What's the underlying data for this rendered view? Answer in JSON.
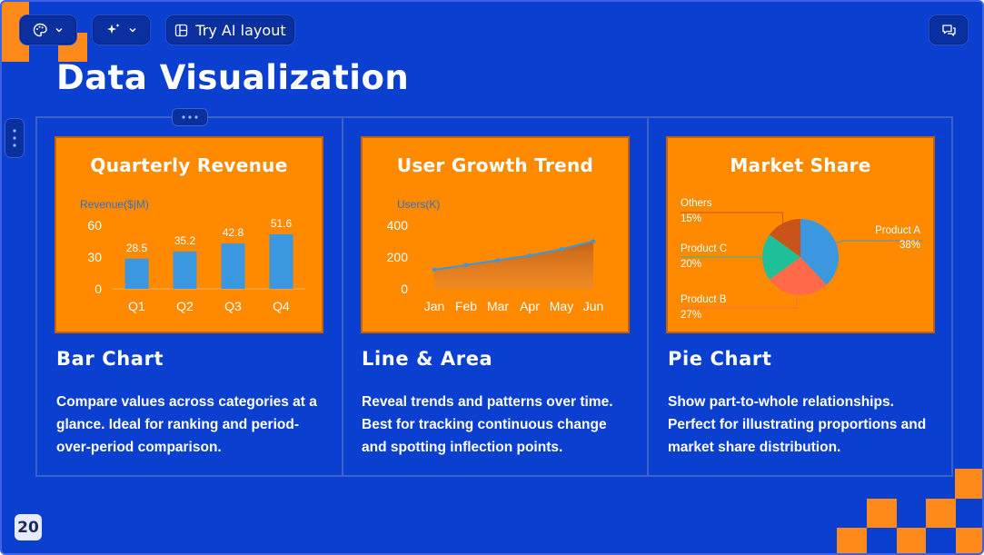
{
  "toolbar": {
    "theme_icon": "palette-icon",
    "ai_icon": "sparkle-icon",
    "try_ai_label": "Try AI layout",
    "comments_icon": "comments-icon"
  },
  "slide": {
    "title": "Data Visualization",
    "page_number": "20",
    "colors": {
      "background": "#0a3fd0",
      "accent": "#ff8a00",
      "bar_blue": "#3b97e0",
      "teal": "#1fbf9a",
      "coral": "#ff6b4a",
      "brown": "#c9541a"
    }
  },
  "cards": [
    {
      "chart_title": "Quarterly Revenue",
      "heading": "Bar Chart",
      "description": "Compare values across categories at a glance. Ideal for ranking and period-over-period comparison."
    },
    {
      "chart_title": "User Growth Trend",
      "heading": "Line & Area",
      "description": "Reveal trends and patterns over time. Best for tracking continuous change and spotting inflection points."
    },
    {
      "chart_title": "Market Share",
      "heading": "Pie Chart",
      "description": "Show part-to-whole relationships. Perfect for illustrating proportions and market share distribution."
    }
  ],
  "chart_data": [
    {
      "type": "bar",
      "title": "Quarterly Revenue",
      "ylabel": "Revenue($|M)",
      "categories": [
        "Q1",
        "Q2",
        "Q3",
        "Q4"
      ],
      "values": [
        28.5,
        35.2,
        42.8,
        51.6
      ],
      "value_labels": [
        "28.5",
        "35.2",
        "42.8",
        "51.6"
      ],
      "yticks": [
        "0",
        "30",
        "60"
      ],
      "ylim": [
        0,
        60
      ],
      "grid": false
    },
    {
      "type": "area",
      "title": "User Growth Trend",
      "ylabel": "Users(K)",
      "categories": [
        "Jan",
        "Feb",
        "Mar",
        "Apr",
        "May",
        "Jun"
      ],
      "values": [
        120,
        150,
        180,
        210,
        250,
        300
      ],
      "yticks": [
        "0",
        "200",
        "400"
      ],
      "ylim": [
        0,
        400
      ],
      "grid": false
    },
    {
      "type": "pie",
      "title": "Market Share",
      "slices": [
        {
          "name": "Product A",
          "label": "38%",
          "value": 38,
          "color": "#3b97e0"
        },
        {
          "name": "Product B",
          "label": "27%",
          "value": 27,
          "color": "#ff6b4a"
        },
        {
          "name": "Product C",
          "label": "20%",
          "value": 20,
          "color": "#1fbf9a"
        },
        {
          "name": "Others",
          "label": "15%",
          "value": 15,
          "color": "#c9541a"
        }
      ]
    }
  ]
}
